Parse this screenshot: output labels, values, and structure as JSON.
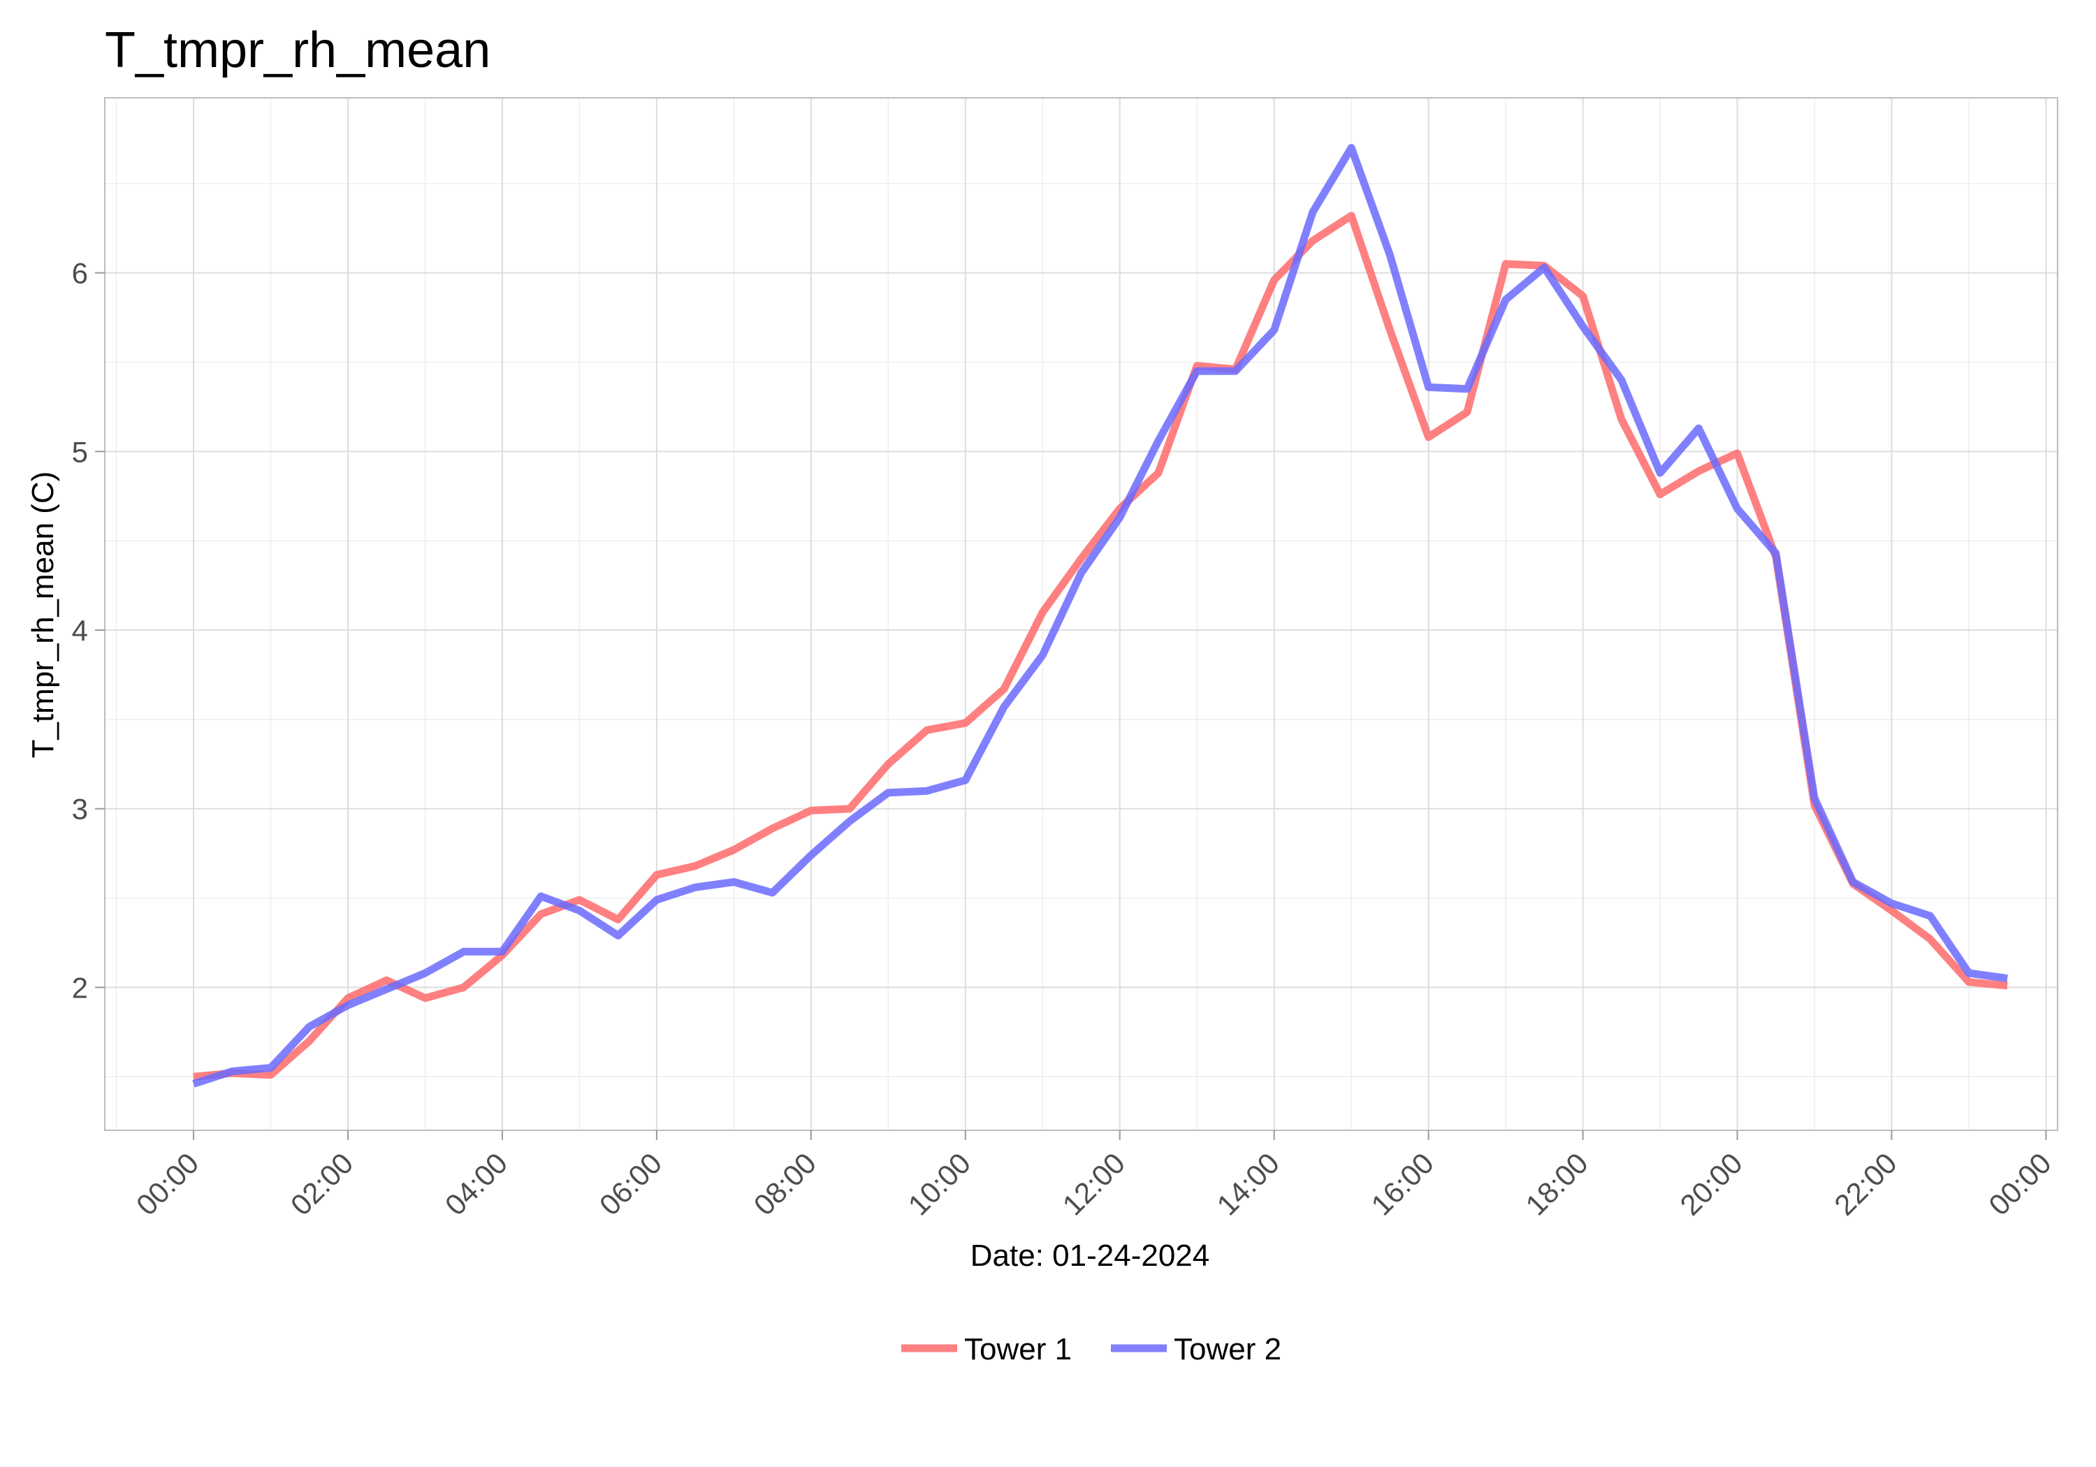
{
  "chart_data": {
    "type": "line",
    "title": "T_tmpr_rh_mean",
    "xlabel": "Date: 01-24-2024",
    "ylabel": "T_tmpr_rh_mean (C)",
    "x_tick_labels": [
      "00:00",
      "02:00",
      "04:00",
      "06:00",
      "08:00",
      "10:00",
      "12:00",
      "14:00",
      "16:00",
      "18:00",
      "20:00",
      "22:00",
      "00:00"
    ],
    "y_ticks": [
      2,
      3,
      4,
      5,
      6
    ],
    "y_tick_labels": [
      "2",
      "3",
      "4",
      "5",
      "6"
    ],
    "xlim_hours": [
      -1.15,
      24.15
    ],
    "ylim": [
      1.2,
      6.98
    ],
    "grid": true,
    "legend_position": "bottom",
    "x_hours": [
      0,
      0.5,
      1,
      1.5,
      2,
      2.5,
      3,
      3.5,
      4,
      4.5,
      5,
      5.5,
      6,
      6.5,
      7,
      7.5,
      8,
      8.5,
      9,
      9.5,
      10,
      10.5,
      11,
      11.5,
      12,
      12.5,
      13,
      13.5,
      14,
      14.5,
      15,
      15.5,
      16,
      16.5,
      17,
      17.5,
      18,
      18.5,
      19,
      19.5,
      20,
      20.5,
      21,
      21.5,
      22,
      22.5,
      23,
      23.5
    ],
    "series": [
      {
        "name": "Tower 1",
        "color": "#ff6a6a",
        "values": [
          1.5,
          1.52,
          1.51,
          1.7,
          1.94,
          2.04,
          1.94,
          2.0,
          2.18,
          2.41,
          2.49,
          2.38,
          2.63,
          2.68,
          2.77,
          2.89,
          2.99,
          3.0,
          3.25,
          3.44,
          3.48,
          3.67,
          4.1,
          4.4,
          4.68,
          4.88,
          5.48,
          5.46,
          5.96,
          6.18,
          6.32,
          5.68,
          5.08,
          5.22,
          6.05,
          6.04,
          5.87,
          5.18,
          4.76,
          4.89,
          4.99,
          4.41,
          3.02,
          2.58,
          2.43,
          2.27,
          2.03,
          2.01
        ]
      },
      {
        "name": "Tower 2",
        "color": "#6a6aff",
        "values": [
          1.46,
          1.53,
          1.55,
          1.78,
          1.9,
          1.99,
          2.08,
          2.2,
          2.2,
          2.51,
          2.43,
          2.29,
          2.49,
          2.56,
          2.59,
          2.53,
          2.74,
          2.93,
          3.09,
          3.1,
          3.16,
          3.57,
          3.86,
          4.32,
          4.63,
          5.06,
          5.45,
          5.45,
          5.68,
          6.34,
          6.7,
          6.1,
          5.36,
          5.35,
          5.85,
          6.03,
          5.7,
          5.4,
          4.88,
          5.13,
          4.68,
          4.43,
          3.06,
          2.59,
          2.47,
          2.4,
          2.08,
          2.05
        ]
      }
    ]
  }
}
